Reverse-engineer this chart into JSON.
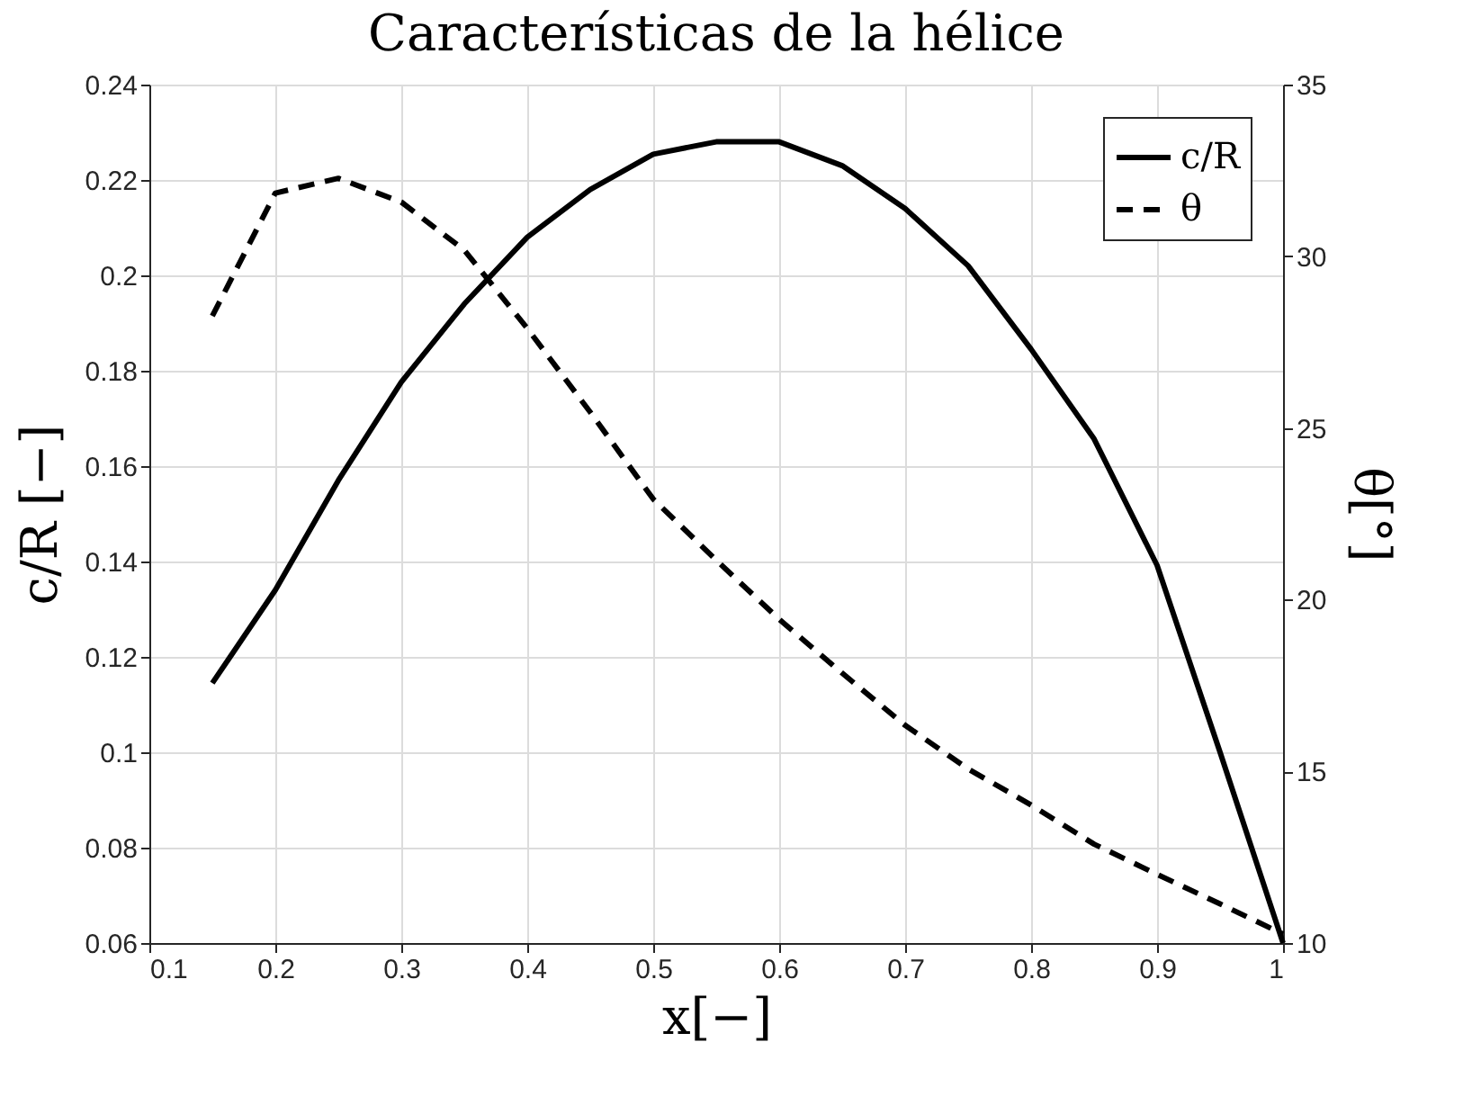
{
  "chart_data": {
    "type": "line",
    "title": "Características de la hélice",
    "xlabel": "x[−]",
    "ylabel": "c/R [−]",
    "y2label": "θ[°]",
    "x": [
      0.15,
      0.2,
      0.25,
      0.3,
      0.35,
      0.4,
      0.45,
      0.5,
      0.55,
      0.6,
      0.65,
      0.7,
      0.75,
      0.8,
      0.85,
      0.9,
      0.95,
      1.0
    ],
    "series": [
      {
        "name": "c/R",
        "color": "#000000",
        "axis": "y",
        "line_style": "solid",
        "values": [
          0.1145,
          0.134,
          0.157,
          0.1776,
          0.194,
          0.208,
          0.218,
          0.2254,
          0.228,
          0.228,
          0.223,
          0.214,
          0.202,
          0.1845,
          0.1657,
          0.1392,
          0.1,
          0.06
        ]
      },
      {
        "name": "θ",
        "color": "#000000",
        "axis": "y2",
        "line_style": "dashed",
        "values": [
          28.26,
          31.84,
          32.27,
          31.58,
          30.18,
          27.9,
          25.46,
          22.93,
          21.15,
          19.43,
          17.86,
          16.34,
          15.07,
          14.02,
          12.88,
          12.0,
          11.14,
          10.26
        ]
      }
    ],
    "xlim": [
      0.1,
      1
    ],
    "xticks": [
      0.1,
      0.2,
      0.3,
      0.4,
      0.5,
      0.6,
      0.7,
      0.8,
      0.9,
      1
    ],
    "ylim": [
      0.06,
      0.24
    ],
    "yticks": [
      0.06,
      0.08,
      0.1,
      0.12,
      0.14,
      0.16,
      0.18,
      0.2,
      0.22,
      0.24
    ],
    "y2lim": [
      10,
      35
    ],
    "y2ticks": [
      10,
      15,
      20,
      25,
      30,
      35
    ],
    "grid": true,
    "legend": "top right",
    "marker": "none"
  }
}
